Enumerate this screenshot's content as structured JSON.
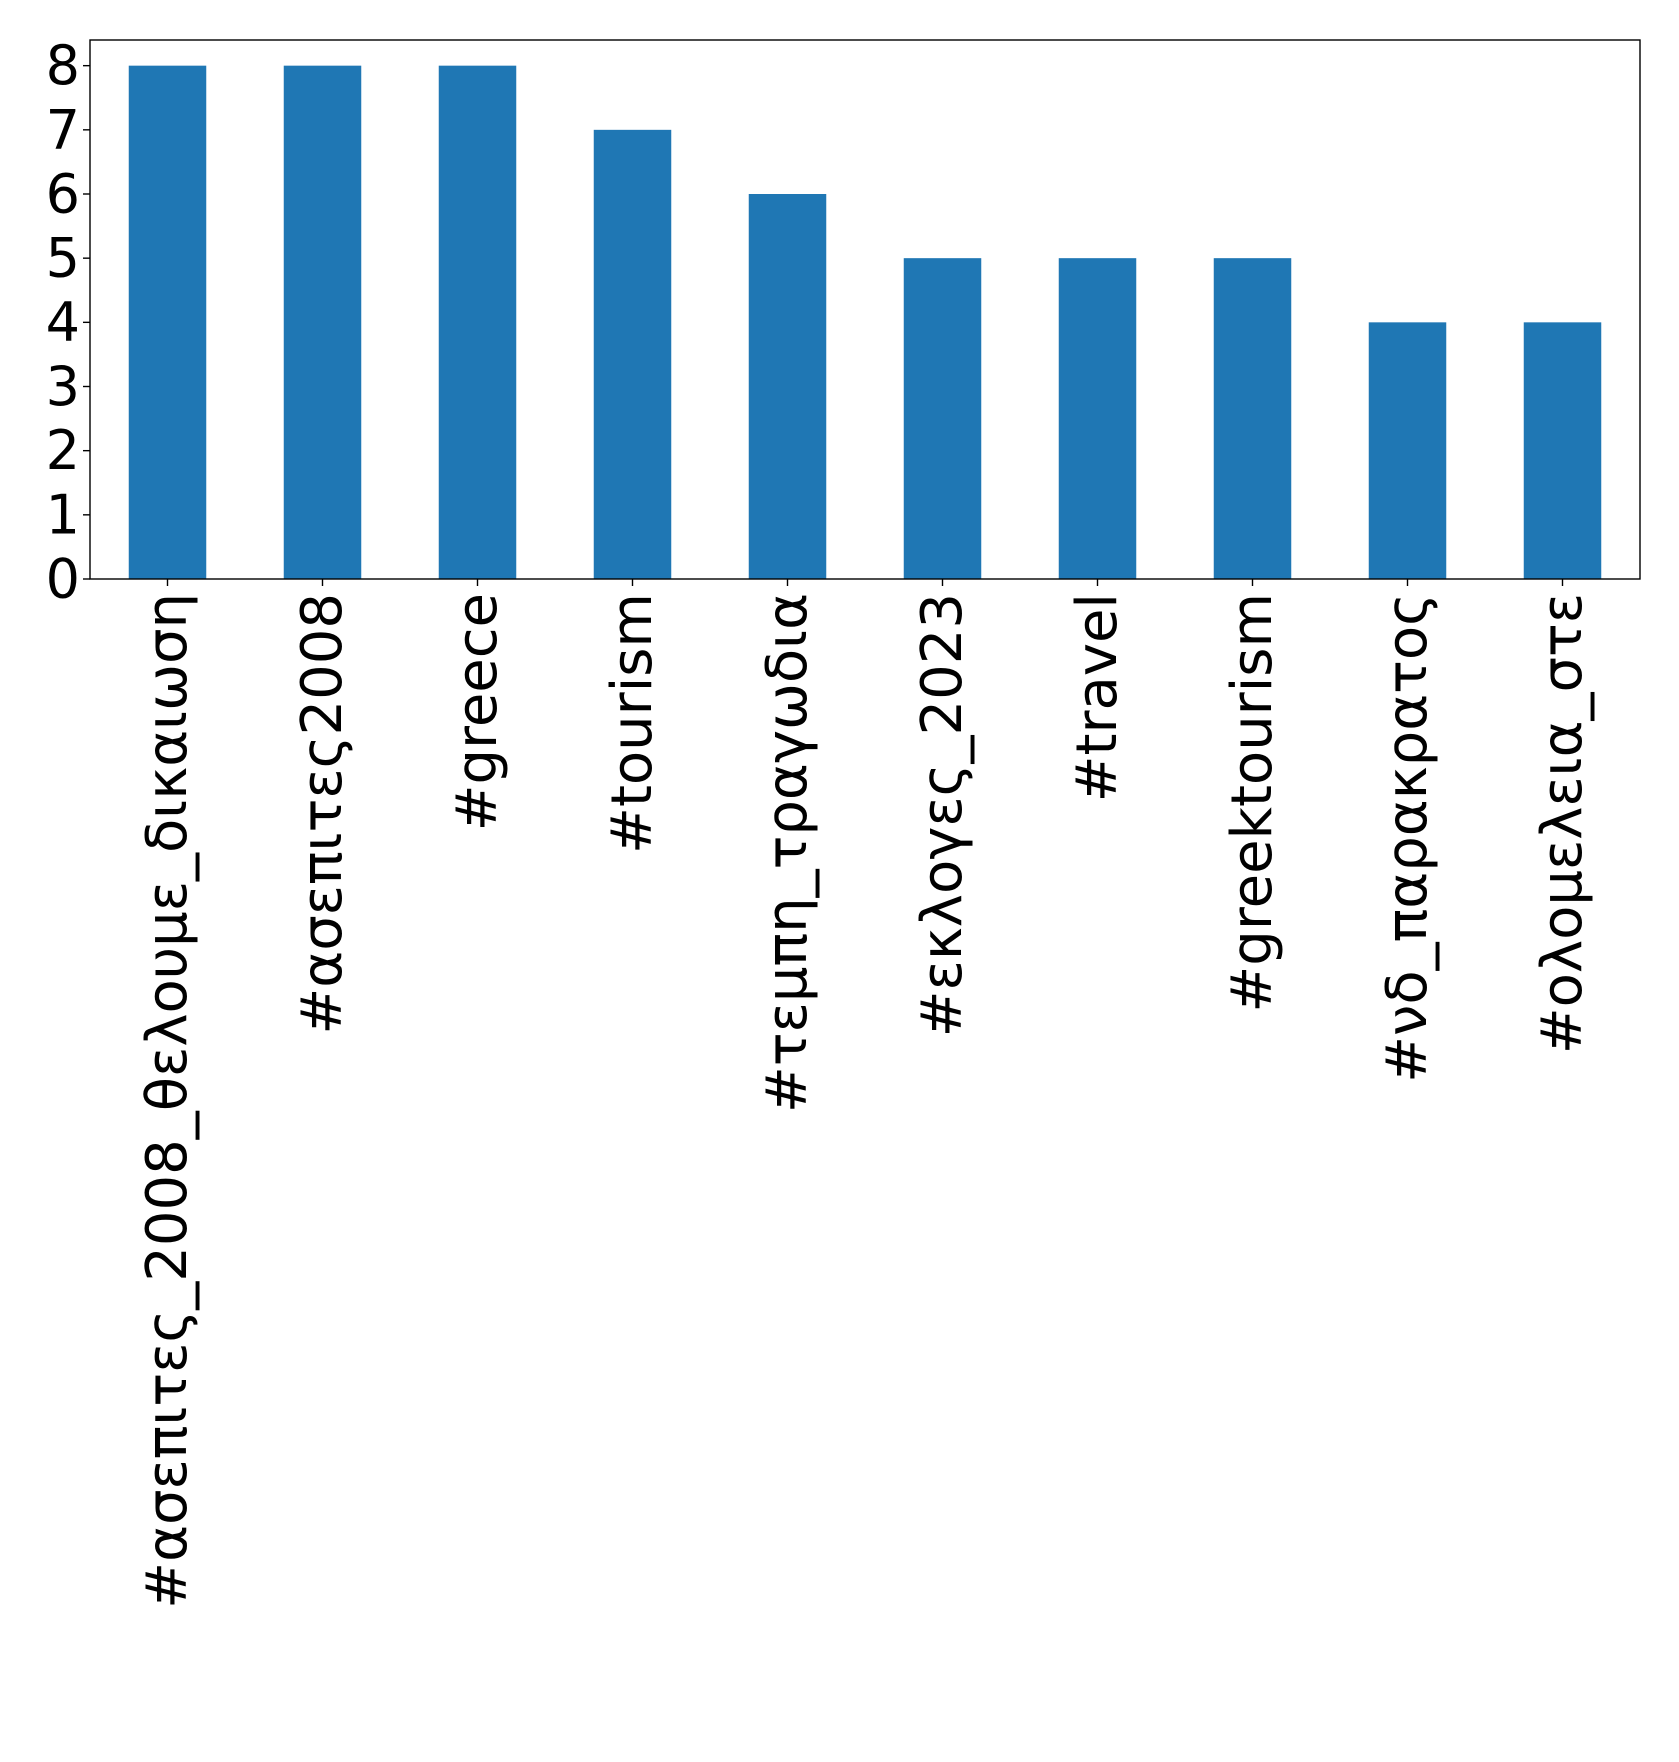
{
  "chart_data": {
    "type": "bar",
    "title": "",
    "xlabel": "",
    "ylabel": "",
    "categories": [
      "#ασεπιτες_2008_θελουμε_δικαιωση",
      "#ασεπιτες2008",
      "#greece",
      "#tourism",
      "#τεμπη_τραγωδια",
      "#εκλογες_2023",
      "#travel",
      "#greektourism",
      "#νδ_παρακρατος",
      "#ολομελεια_στε"
    ],
    "values": [
      8,
      8,
      8,
      7,
      6,
      5,
      5,
      5,
      4,
      4
    ],
    "ylim": [
      0,
      8.4
    ],
    "yticks": [
      "0",
      "1",
      "2",
      "3",
      "4",
      "5",
      "6",
      "7",
      "8"
    ],
    "bar_color": "#1f77b4",
    "grid": false,
    "legend": false
  }
}
